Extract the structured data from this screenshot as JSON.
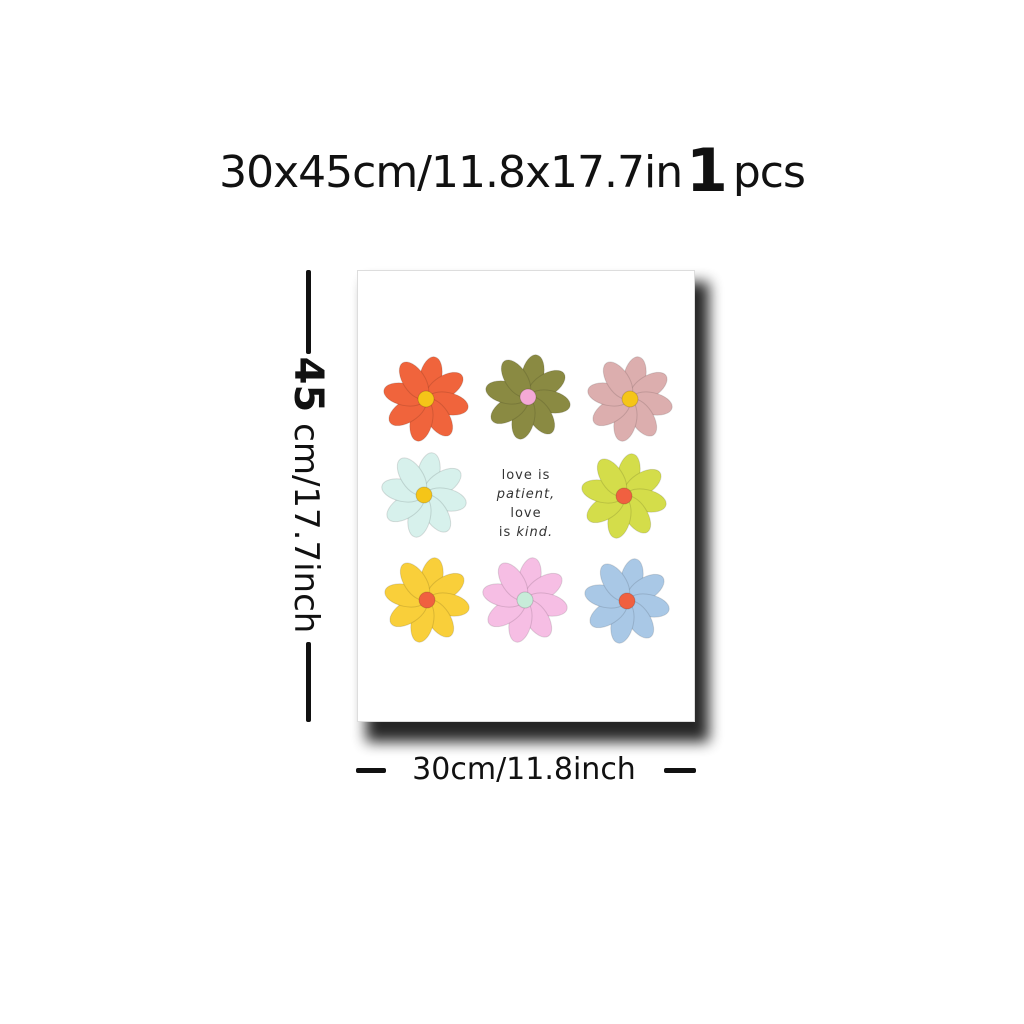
{
  "heading": {
    "size_text": "30x45cm/11.8x17.7in",
    "quantity": "1",
    "unit": "pcs"
  },
  "poster": {
    "quote": {
      "line1": "love is",
      "line2": "patient,",
      "line3": "love",
      "line4_prefix": "is ",
      "line4_emph": "kind."
    },
    "flowers": [
      {
        "petal": "#f0643c",
        "center": "#f5c518"
      },
      {
        "petal": "#8a8a42",
        "center": "#f4a9d6"
      },
      {
        "petal": "#dcaeae",
        "center": "#f5c518"
      },
      {
        "petal": "#d7f1ec",
        "center": "#f5c518"
      },
      {
        "petal": "#d4dd4a",
        "center": "#f06040"
      },
      {
        "petal": "#f9cf3a",
        "center": "#f06040"
      },
      {
        "petal": "#f6bee4",
        "center": "#c7ecd9"
      },
      {
        "petal": "#a9c8e6",
        "center": "#f06040"
      }
    ]
  },
  "dimensions": {
    "height_number": "45",
    "height_rest": "cm/17.7inch",
    "width_label": "30cm/11.8inch"
  }
}
